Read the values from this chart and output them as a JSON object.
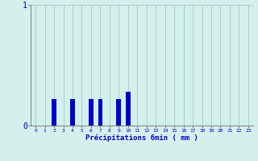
{
  "xlabel": "Précipitations 6min ( mm )",
  "hours": [
    0,
    1,
    2,
    3,
    4,
    5,
    6,
    7,
    8,
    9,
    10,
    11,
    12,
    13,
    14,
    15,
    16,
    17,
    18,
    19,
    20,
    21,
    22,
    23
  ],
  "values": [
    0,
    0,
    0.22,
    0,
    0.22,
    0,
    0.22,
    0.22,
    0,
    0.22,
    0.28,
    0,
    0,
    0,
    0,
    0,
    0,
    0,
    0,
    0,
    0,
    0,
    0,
    0
  ],
  "bar_color": "#0000cc",
  "bg_color": "#d4f0ec",
  "grid_color": "#a8cece",
  "axis_color": "#888888",
  "text_color": "#0000cc",
  "ylim": [
    0,
    1
  ],
  "yticks": [
    0,
    1
  ],
  "bar_width": 0.5
}
